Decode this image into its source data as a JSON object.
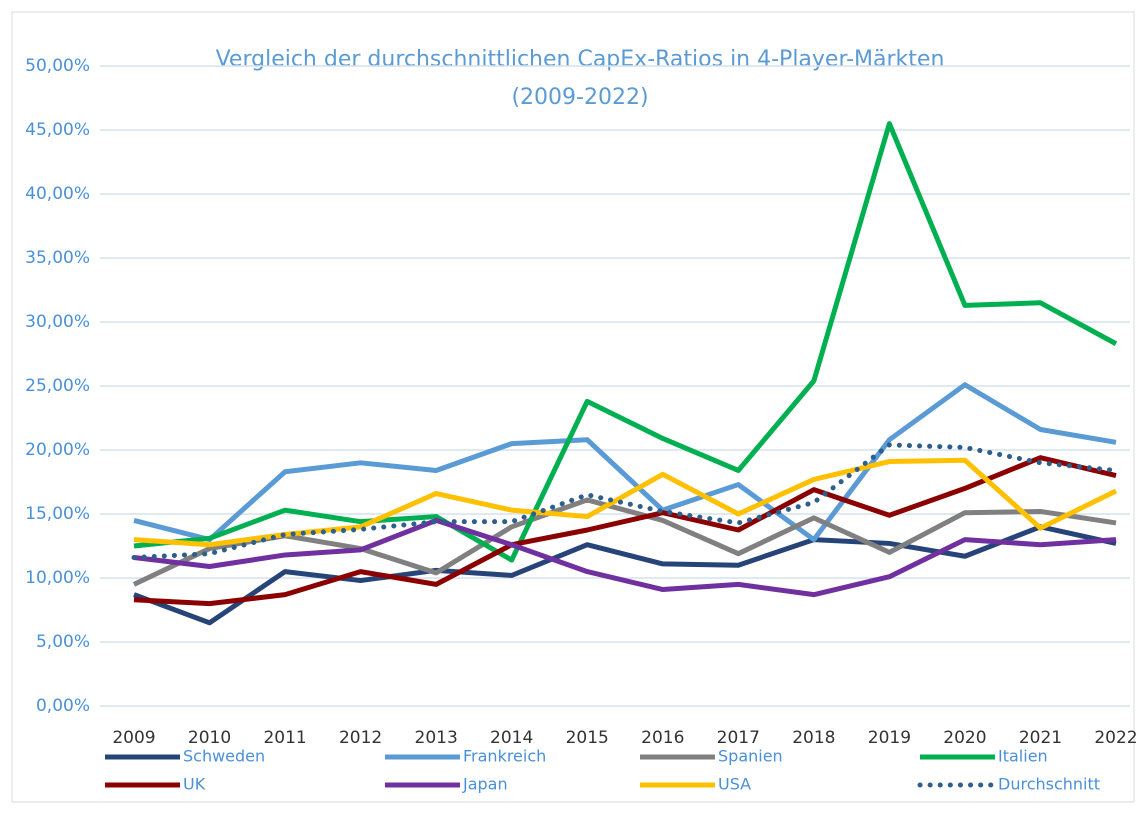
{
  "chart_data": {
    "type": "line",
    "title": "Vergleich der durchschnittlichen CapEx-Ratios in 4-Player-Märkten",
    "subtitle": "(2009-2022)",
    "categories": [
      "2009",
      "2010",
      "2011",
      "2012",
      "2013",
      "2014",
      "2015",
      "2016",
      "2017",
      "2018",
      "2019",
      "2020",
      "2021",
      "2022"
    ],
    "series": [
      {
        "name": "Schweden",
        "color": "#264478",
        "values": [
          8.7,
          6.5,
          10.5,
          9.8,
          10.6,
          10.2,
          12.6,
          11.1,
          11.0,
          13.0,
          12.7,
          11.7,
          14.0,
          12.7
        ]
      },
      {
        "name": "Frankreich",
        "color": "#5b9bd5",
        "values": [
          14.5,
          13.0,
          18.3,
          19.0,
          18.4,
          20.5,
          20.8,
          15.3,
          17.3,
          13.0,
          20.8,
          25.1,
          21.6,
          20.6
        ]
      },
      {
        "name": "Spanien",
        "color": "#808080",
        "values": [
          9.5,
          12.3,
          13.3,
          12.3,
          10.4,
          14.0,
          16.1,
          14.5,
          11.9,
          14.7,
          12.0,
          15.1,
          15.2,
          14.3
        ]
      },
      {
        "name": "Italien",
        "color": "#00b050",
        "values": [
          12.5,
          13.1,
          15.3,
          14.4,
          14.8,
          11.4,
          23.8,
          20.9,
          18.4,
          25.4,
          45.5,
          31.3,
          31.5,
          28.3
        ]
      },
      {
        "name": "UK",
        "color": "#8b0000",
        "values": [
          8.3,
          8.0,
          8.7,
          10.5,
          9.5,
          12.6,
          13.75,
          15.1,
          13.75,
          16.9,
          14.9,
          17.0,
          19.4,
          18.0
        ]
      },
      {
        "name": "Japan",
        "color": "#7030a0",
        "values": [
          11.6,
          10.9,
          11.8,
          12.2,
          14.5,
          12.6,
          10.5,
          9.1,
          9.5,
          8.7,
          10.1,
          13.0,
          12.6,
          13.0
        ]
      },
      {
        "name": "USA",
        "color": "#ffc000",
        "values": [
          13.0,
          12.6,
          13.4,
          14.0,
          16.6,
          15.3,
          14.8,
          18.1,
          15.0,
          17.7,
          19.1,
          19.2,
          13.9,
          16.8
        ]
      },
      {
        "name": "Durchschnitt",
        "color": "#2e5f8c",
        "dotted": true,
        "values": [
          11.6,
          11.9,
          13.4,
          13.8,
          14.4,
          14.4,
          16.5,
          15.2,
          14.3,
          15.9,
          20.4,
          20.2,
          19.0,
          18.4
        ]
      }
    ],
    "ylim": [
      0,
      50
    ],
    "yticks": [
      {
        "value": 0,
        "label": "0,00%"
      },
      {
        "value": 5,
        "label": "5,00%"
      },
      {
        "value": 10,
        "label": "10,00%"
      },
      {
        "value": 15,
        "label": "15,00%"
      },
      {
        "value": 20,
        "label": "20,00%"
      },
      {
        "value": 25,
        "label": "25,00%"
      },
      {
        "value": 30,
        "label": "30,00%"
      },
      {
        "value": 35,
        "label": "35,00%"
      },
      {
        "value": 40,
        "label": "40,00%"
      },
      {
        "value": 45,
        "label": "45,00%"
      },
      {
        "value": 50,
        "label": "50,00%"
      }
    ],
    "grid": true
  }
}
